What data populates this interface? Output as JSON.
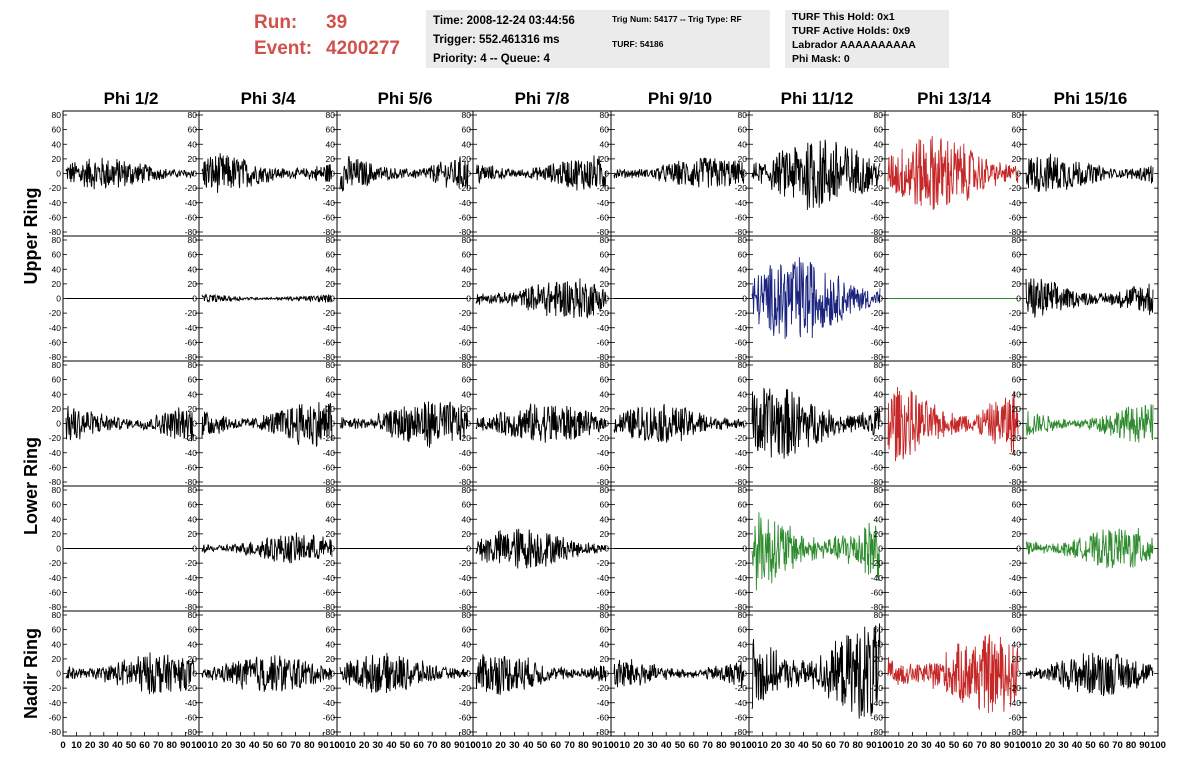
{
  "header": {
    "run_label": "Run:",
    "run_value": "39",
    "event_label": "Event:",
    "event_value": "4200277"
  },
  "info_box_1": {
    "time": "Time: 2008-12-24 03:44:56",
    "trigger": "Trigger: 552.461316 ms",
    "priority": "Priority: 4 -- Queue: 4"
  },
  "info_box_2": {
    "trig": "Trig Num: 54177 -- Trig Type: RF",
    "turf": "TURF: 54186"
  },
  "info_box_3": {
    "hold": "TURF This Hold: 0x1",
    "active": "TURF Active Holds: 0x9",
    "labrador": "Labrador AAAAAAAAAA",
    "phimask": "Phi Mask: 0"
  },
  "phi_labels": [
    "Phi 1/2",
    "Phi 3/4",
    "Phi 5/6",
    "Phi 7/8",
    "Phi 9/10",
    "Phi 11/12",
    "Phi 13/14",
    "Phi 15/16"
  ],
  "ring_labels": [
    "Upper Ring",
    "Lower Ring",
    "Nadir Ring"
  ],
  "colors": {
    "normal": "#000000",
    "red": "#c62828",
    "blue": "#1a237e",
    "green": "#2e8b2e",
    "title_red": "#d0504c",
    "info_bg": "#ebebeb"
  },
  "chart_data": {
    "type": "line",
    "ylim": [
      -80,
      80
    ],
    "xlim": [
      0,
      100
    ],
    "y_ticks": [
      80,
      60,
      40,
      20,
      0,
      -20,
      -40,
      -60,
      -80
    ],
    "x_ticks": [
      "0",
      "10",
      "20",
      "30",
      "40",
      "50",
      "60",
      "70",
      "80",
      "90",
      "100"
    ],
    "panel_rows": 5,
    "panel_cols": 8,
    "panels": [
      [
        {
          "color": "normal",
          "amp": 11
        },
        {
          "color": "normal",
          "amp": 13
        },
        {
          "color": "normal",
          "amp": 13
        },
        {
          "color": "normal",
          "amp": 12
        },
        {
          "color": "normal",
          "amp": 11
        },
        {
          "color": "normal",
          "amp": 25
        },
        {
          "color": "red",
          "amp": 26
        },
        {
          "color": "normal",
          "amp": 13
        }
      ],
      [
        {
          "color": "normal",
          "amp": 0
        },
        {
          "color": "normal",
          "amp": 3
        },
        {
          "color": "normal",
          "amp": 0
        },
        {
          "color": "normal",
          "amp": 14
        },
        {
          "color": "normal",
          "amp": 0
        },
        {
          "color": "blue",
          "amp": 28
        },
        {
          "color": "green",
          "amp": 0
        },
        {
          "color": "normal",
          "amp": 15
        }
      ],
      [
        {
          "color": "normal",
          "amp": 14
        },
        {
          "color": "normal",
          "amp": 16
        },
        {
          "color": "normal",
          "amp": 16
        },
        {
          "color": "normal",
          "amp": 14
        },
        {
          "color": "normal",
          "amp": 13
        },
        {
          "color": "normal",
          "amp": 25
        },
        {
          "color": "red",
          "amp": 27
        },
        {
          "color": "green",
          "amp": 13
        }
      ],
      [
        {
          "color": "normal",
          "amp": 0
        },
        {
          "color": "normal",
          "amp": 10
        },
        {
          "color": "normal",
          "amp": 0
        },
        {
          "color": "normal",
          "amp": 14
        },
        {
          "color": "normal",
          "amp": 0
        },
        {
          "color": "green",
          "amp": 27
        },
        {
          "color": "normal",
          "amp": 0
        },
        {
          "color": "green",
          "amp": 14
        }
      ],
      [
        {
          "color": "normal",
          "amp": 14
        },
        {
          "color": "normal",
          "amp": 13
        },
        {
          "color": "normal",
          "amp": 13
        },
        {
          "color": "normal",
          "amp": 14
        },
        {
          "color": "normal",
          "amp": 11
        },
        {
          "color": "normal",
          "amp": 34
        },
        {
          "color": "red",
          "amp": 26
        },
        {
          "color": "normal",
          "amp": 15
        }
      ]
    ]
  }
}
